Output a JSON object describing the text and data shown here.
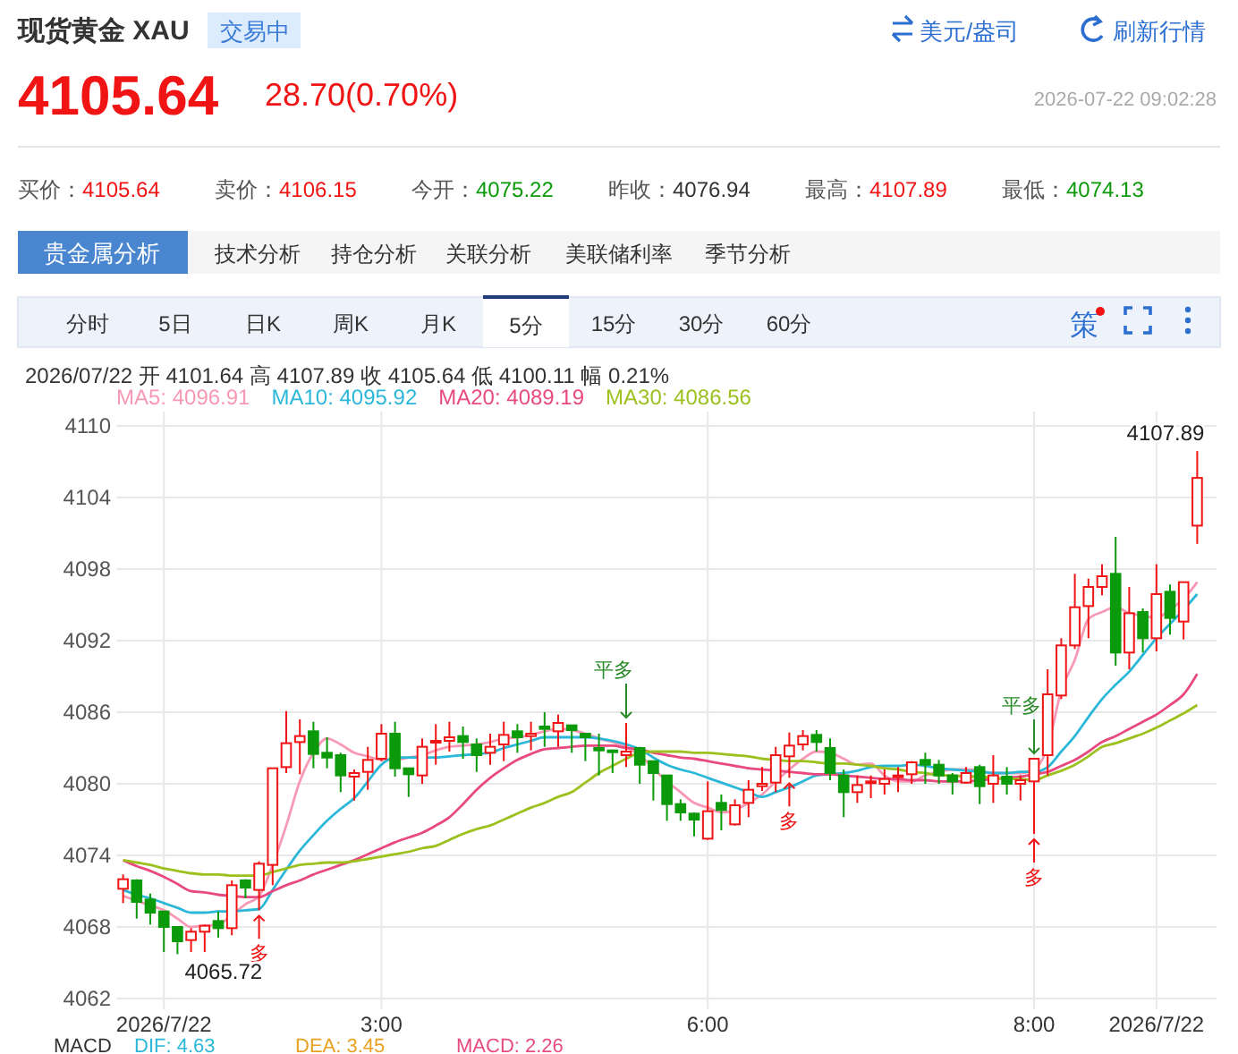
{
  "chart_data": {
    "type": "candlestick",
    "title": "现货黄金 XAU",
    "categories": [
      null,
      null,
      null,
      "2026/7/22",
      null,
      null,
      null,
      null,
      null,
      null,
      null,
      null,
      null,
      null,
      null,
      null,
      null,
      null,
      null,
      "3:00",
      null,
      null,
      null,
      null,
      null,
      null,
      null,
      null,
      null,
      null,
      null,
      null,
      null,
      null,
      null,
      null,
      null,
      null,
      null,
      null,
      null,
      null,
      null,
      "6:00",
      null,
      null,
      null,
      null,
      null,
      null,
      null,
      null,
      null,
      null,
      null,
      null,
      null,
      null,
      null,
      null,
      null,
      null,
      null,
      null,
      null,
      null,
      null,
      "8:00",
      null,
      null,
      null,
      null,
      null,
      null,
      null,
      null,
      "2026/7/22",
      null,
      null,
      null
    ],
    "ohlc": [
      [
        4071.2,
        4072.4,
        4070.0,
        4072.0
      ],
      [
        4071.9,
        4072.0,
        4068.7,
        4070.1
      ],
      [
        4070.3,
        4070.8,
        4068.2,
        4069.2
      ],
      [
        4069.3,
        4069.3,
        4065.9,
        4068.0
      ],
      [
        4068.0,
        4068.0,
        4065.72,
        4066.8
      ],
      [
        4066.9,
        4067.9,
        4065.9,
        4067.6
      ],
      [
        4067.6,
        4068.2,
        4065.9,
        4068.1
      ],
      [
        4068.5,
        4069.3,
        4067.1,
        4067.9
      ],
      [
        4067.9,
        4071.9,
        4067.3,
        4071.5
      ],
      [
        4071.9,
        4072.0,
        4070.4,
        4071.3
      ],
      [
        4071.1,
        4073.5,
        4069.4,
        4073.3
      ],
      [
        4073.2,
        4081.3,
        4071.5,
        4081.3
      ],
      [
        4081.4,
        4086.1,
        4080.9,
        4083.4
      ],
      [
        4083.5,
        4085.4,
        4080.8,
        4084.0
      ],
      [
        4084.4,
        4085.2,
        4081.3,
        4082.5
      ],
      [
        4082.6,
        4083.9,
        4081.3,
        4082.2
      ],
      [
        4082.4,
        4082.6,
        4079.3,
        4080.7
      ],
      [
        4080.6,
        4081.2,
        4078.6,
        4080.9
      ],
      [
        4081.0,
        4083.1,
        4079.5,
        4082.0
      ],
      [
        4082.1,
        4085.0,
        4081.9,
        4084.2
      ],
      [
        4084.2,
        4085.2,
        4080.6,
        4081.3
      ],
      [
        4081.3,
        4081.3,
        4078.9,
        4080.8
      ],
      [
        4080.7,
        4083.8,
        4080.0,
        4083.1
      ],
      [
        4083.5,
        4085.0,
        4081.6,
        4083.6
      ],
      [
        4083.6,
        4085.2,
        4082.7,
        4083.9
      ],
      [
        4084.0,
        4084.8,
        4082.1,
        4083.5
      ],
      [
        4083.3,
        4083.8,
        4081.0,
        4082.4
      ],
      [
        4082.6,
        4084.2,
        4081.6,
        4083.1
      ],
      [
        4083.3,
        4085.2,
        4081.9,
        4084.1
      ],
      [
        4084.4,
        4085.0,
        4082.6,
        4083.9
      ],
      [
        4084.0,
        4085.2,
        4082.8,
        4084.2
      ],
      [
        4084.8,
        4086.0,
        4083.1,
        4084.6
      ],
      [
        4084.4,
        4085.8,
        4083.1,
        4085.1
      ],
      [
        4084.9,
        4084.9,
        4082.6,
        4084.5
      ],
      [
        4084.2,
        4084.2,
        4081.9,
        4083.9
      ],
      [
        4083.0,
        4084.2,
        4080.7,
        4082.8
      ],
      [
        4082.8,
        4082.8,
        4080.9,
        4082.7
      ],
      [
        4082.4,
        4085.1,
        4081.4,
        4082.7
      ],
      [
        4083.0,
        4083.1,
        4080.0,
        4081.6
      ],
      [
        4081.9,
        4081.9,
        4078.6,
        4080.9
      ],
      [
        4080.7,
        4080.7,
        4076.9,
        4078.3
      ],
      [
        4078.3,
        4078.7,
        4076.9,
        4077.6
      ],
      [
        4077.5,
        4077.6,
        4075.6,
        4077.0
      ],
      [
        4075.4,
        4080.2,
        4075.3,
        4077.7
      ],
      [
        4078.4,
        4079.1,
        4076.1,
        4077.8
      ],
      [
        4076.6,
        4078.7,
        4076.5,
        4078.2
      ],
      [
        4078.4,
        4080.3,
        4077.2,
        4079.5
      ],
      [
        4079.8,
        4081.4,
        4079.4,
        4080.0
      ],
      [
        4080.1,
        4083.1,
        4079.3,
        4082.4
      ],
      [
        4082.3,
        4084.3,
        4080.5,
        4083.2
      ],
      [
        4083.3,
        4084.5,
        4082.8,
        4084.0
      ],
      [
        4084.1,
        4084.5,
        4082.7,
        4083.5
      ],
      [
        4083.0,
        4083.8,
        4080.3,
        4080.9
      ],
      [
        4080.7,
        4081.2,
        4077.2,
        4079.3
      ],
      [
        4079.3,
        4080.7,
        4078.4,
        4079.9
      ],
      [
        4080.1,
        4080.7,
        4078.8,
        4080.2
      ],
      [
        4080.0,
        4081.2,
        4079.1,
        4080.4
      ],
      [
        4080.6,
        4081.4,
        4079.3,
        4080.7
      ],
      [
        4080.8,
        4081.9,
        4080.0,
        4081.8
      ],
      [
        4082.0,
        4082.6,
        4080.0,
        4081.6
      ],
      [
        4081.6,
        4082.0,
        4080.0,
        4080.7
      ],
      [
        4080.7,
        4080.9,
        4079.1,
        4080.2
      ],
      [
        4080.1,
        4081.4,
        4080.0,
        4080.9
      ],
      [
        4081.4,
        4081.6,
        4078.3,
        4079.8
      ],
      [
        4080.0,
        4082.4,
        4078.4,
        4080.7
      ],
      [
        4080.6,
        4081.4,
        4079.1,
        4080.0
      ],
      [
        4080.0,
        4080.7,
        4078.6,
        4080.3
      ],
      [
        4080.2,
        4082.1,
        4075.8,
        4082.1
      ],
      [
        4082.4,
        4089.6,
        4080.7,
        4087.5
      ],
      [
        4087.4,
        4092.2,
        4087.1,
        4091.6
      ],
      [
        4091.6,
        4097.6,
        4091.3,
        4094.8
      ],
      [
        4094.9,
        4097.2,
        4092.2,
        4096.5
      ],
      [
        4096.5,
        4098.4,
        4095.8,
        4097.4
      ],
      [
        4097.6,
        4100.7,
        4089.9,
        4091.0
      ],
      [
        4091.0,
        4096.5,
        4089.6,
        4094.3
      ],
      [
        4094.4,
        4094.7,
        4091.0,
        4092.2
      ],
      [
        4092.2,
        4098.4,
        4091.1,
        4095.9
      ],
      [
        4096.1,
        4096.7,
        4092.5,
        4093.9
      ],
      [
        4093.6,
        4096.9,
        4092.1,
        4096.9
      ],
      [
        4101.64,
        4107.89,
        4100.11,
        4105.64
      ]
    ],
    "series": [
      {
        "type": "line",
        "name": "MA5: 4096.91",
        "color": "#f799b4",
        "values": [
          4070.6,
          4070.2,
          4069.8,
          4069.4,
          4068.7,
          4068.0,
          4068.1,
          4068.2,
          4069.0,
          4069.9,
          4070.6,
          4073.2,
          4076.5,
          4080.2,
          4082.6,
          4083.8,
          4083.3,
          4082.6,
          4082.3,
          4082.0,
          4082.0,
          4082.2,
          4082.4,
          4082.8,
          4083.1,
          4083.2,
          4083.3,
          4083.5,
          4083.8,
          4083.9,
          4084.1,
          4084.4,
          4084.6,
          4084.5,
          4084.2,
          4083.8,
          4083.5,
          4083.1,
          4082.4,
          4081.3,
          4080.2,
          4079.3,
          4078.4,
          4078.0,
          4077.6,
          4077.8,
          4078.4,
          4079.1,
          4080.2,
          4081.2,
          4082.1,
          4082.7,
          4082.6,
          4082.1,
          4081.6,
          4081.7,
          4080.7,
          4080.2,
          4080.2,
          4080.7,
          4081.0,
          4081.2,
          4081.2,
          4081.1,
          4080.9,
          4080.9,
          4080.9,
          4081.2,
          4083.1,
          4087.8,
          4090.4,
          4093.8,
          4094.4,
          4094.8,
          4094.3,
          4094.1,
          4093.9,
          4094.6,
          4095.5,
          4096.9
        ]
      },
      {
        "type": "line",
        "name": "MA10: 4095.92",
        "color": "#2bb8d8",
        "values": [
          4071.1,
          4070.7,
          4070.4,
          4070.0,
          4069.6,
          4069.2,
          4069.2,
          4069.3,
          4069.3,
          4069.4,
          4069.5,
          4071.1,
          4072.8,
          4074.4,
          4075.7,
          4076.9,
          4077.9,
          4078.8,
          4080.2,
          4081.6,
          4082.2,
          4082.2,
          4082.2,
          4082.2,
          4082.3,
          4082.4,
          4082.5,
          4082.6,
          4083.0,
          4083.3,
          4083.6,
          4083.9,
          4083.9,
          4083.9,
          4083.9,
          4083.8,
          4083.6,
          4083.3,
          4082.9,
          4082.2,
          4081.6,
          4081.2,
          4080.9,
          4080.5,
          4080.1,
          4079.7,
          4079.3,
          4078.9,
          4079.3,
          4079.7,
          4080.2,
          4080.7,
          4080.8,
          4080.9,
          4081.1,
          4081.4,
          4081.5,
          4081.5,
          4081.6,
          4081.5,
          4081.3,
          4081.2,
          4081.1,
          4081.0,
          4080.9,
          4080.9,
          4081.0,
          4081.0,
          4081.4,
          4082.7,
          4084.0,
          4085.6,
          4087.1,
          4088.3,
          4089.4,
          4090.8,
          4092.2,
          4093.4,
          4094.6,
          4095.9
        ]
      },
      {
        "type": "line",
        "name": "MA20: 4089.19",
        "color": "#e84a7f",
        "values": [
          4073.6,
          4073.1,
          4072.7,
          4072.2,
          4071.6,
          4071.0,
          4070.9,
          4070.7,
          4070.6,
          4070.5,
          4070.5,
          4071.0,
          4071.5,
          4071.9,
          4072.4,
          4072.8,
          4073.2,
          4073.6,
          4074.1,
          4074.6,
          4075.1,
          4075.5,
          4075.9,
          4076.5,
          4077.2,
          4078.3,
          4079.5,
          4080.5,
          4081.3,
          4082.0,
          4082.5,
          4082.9,
          4083.0,
          4083.1,
          4083.2,
          4083.2,
          4083.2,
          4083.0,
          4082.9,
          4082.6,
          4082.4,
          4082.2,
          4082.1,
          4081.9,
          4081.7,
          4081.5,
          4081.3,
          4081.2,
          4081.1,
          4081.0,
          4080.9,
          4080.8,
          4080.8,
          4080.7,
          4080.6,
          4080.5,
          4080.4,
          4080.4,
          4080.3,
          4080.3,
          4080.2,
          4080.2,
          4080.2,
          4080.3,
          4080.4,
          4080.5,
          4080.6,
          4080.8,
          4081.0,
          4081.5,
          4082.0,
          4082.7,
          4083.5,
          4084.0,
          4084.6,
          4085.2,
          4085.8,
          4086.6,
          4087.5,
          4089.2
        ]
      },
      {
        "type": "line",
        "name": "MA30: 4086.56",
        "color": "#9cc11e",
        "values": [
          4073.6,
          4073.4,
          4073.2,
          4072.9,
          4072.7,
          4072.5,
          4072.4,
          4072.4,
          4072.3,
          4072.3,
          4072.3,
          4072.6,
          4072.9,
          4073.2,
          4073.3,
          4073.4,
          4073.4,
          4073.5,
          4073.7,
          4073.9,
          4074.1,
          4074.3,
          4074.6,
          4074.8,
          4075.3,
          4075.8,
          4076.2,
          4076.5,
          4077.0,
          4077.5,
          4078.0,
          4078.4,
          4078.9,
          4079.3,
          4080.1,
          4080.9,
          4081.5,
          4082.1,
          4082.6,
          4082.7,
          4082.7,
          4082.7,
          4082.6,
          4082.6,
          4082.5,
          4082.4,
          4082.3,
          4082.1,
          4082.0,
          4081.9,
          4081.9,
          4081.8,
          4081.7,
          4081.7,
          4081.6,
          4081.5,
          4081.3,
          4081.2,
          4081.0,
          4080.9,
          4080.7,
          4080.7,
          4080.6,
          4080.6,
          4080.5,
          4080.4,
          4080.4,
          4080.3,
          4080.7,
          4081.1,
          4081.6,
          4082.3,
          4083.1,
          4083.4,
          4083.8,
          4084.2,
          4084.7,
          4085.3,
          4085.9,
          4086.6
        ]
      }
    ],
    "ylim": [
      4062,
      4110
    ],
    "yticks": [
      4062,
      4068,
      4074,
      4080,
      4086,
      4092,
      4098,
      4104,
      4110
    ],
    "grid": true,
    "legend": "top left",
    "annotations": [
      "交易中",
      "美元/盎司",
      "刷新行情",
      "4105.64",
      "28.70(0.70%)",
      "2026-07-22 09:02:28",
      "买价：4105.64",
      "卖价：4106.15",
      "今开：4075.22",
      "昨收：4076.94",
      "最高：4107.89",
      "最低：4074.13",
      "贵金属分析",
      "技术分析",
      "持仓分析",
      "关联分析",
      "美联储利率",
      "季节分析",
      "分时",
      "5日",
      "日K",
      "周K",
      "月K",
      "5分",
      "15分",
      "30分",
      "60分",
      "策",
      "2026/07/22  开 4101.64  高 4107.89  收 4105.64  低 4100.11  幅 0.21%",
      "MACD",
      "DIF: 4.63",
      "DEA: 3.45",
      "MACD: 2.26",
      "4107.89",
      "4065.72",
      "多",
      "平多",
      "多",
      "平多",
      "多"
    ]
  }
}
